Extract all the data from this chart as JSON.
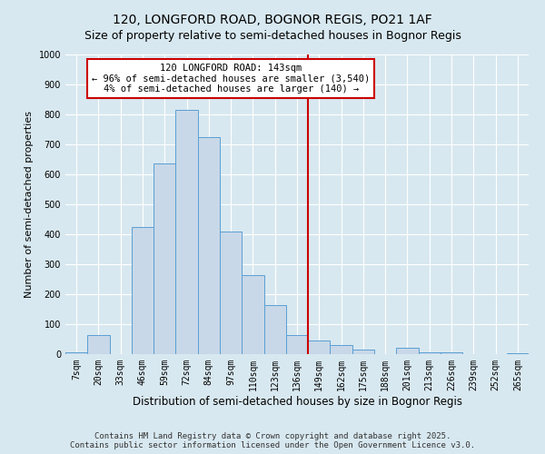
{
  "title": "120, LONGFORD ROAD, BOGNOR REGIS, PO21 1AF",
  "subtitle": "Size of property relative to semi-detached houses in Bognor Regis",
  "xlabel": "Distribution of semi-detached houses by size in Bognor Regis",
  "ylabel": "Number of semi-detached properties",
  "footer_line1": "Contains HM Land Registry data © Crown copyright and database right 2025.",
  "footer_line2": "Contains public sector information licensed under the Open Government Licence v3.0.",
  "categories": [
    "7sqm",
    "20sqm",
    "33sqm",
    "46sqm",
    "59sqm",
    "72sqm",
    "84sqm",
    "97sqm",
    "110sqm",
    "123sqm",
    "136sqm",
    "149sqm",
    "162sqm",
    "175sqm",
    "188sqm",
    "201sqm",
    "213sqm",
    "226sqm",
    "239sqm",
    "252sqm",
    "265sqm"
  ],
  "values": [
    5,
    65,
    0,
    425,
    635,
    815,
    725,
    410,
    265,
    165,
    65,
    45,
    30,
    15,
    0,
    20,
    5,
    5,
    0,
    0,
    2
  ],
  "bar_color": "#c8d8e8",
  "bar_edge_color": "#5a9fd4",
  "vline_x_index": 10.5,
  "vline_color": "#cc0000",
  "annotation_text": "120 LONGFORD ROAD: 143sqm\n← 96% of semi-detached houses are smaller (3,540)\n4% of semi-detached houses are larger (140) →",
  "annotation_box_color": "#cc0000",
  "annotation_box_facecolor": "white",
  "ylim": [
    0,
    1000
  ],
  "yticks": [
    0,
    100,
    200,
    300,
    400,
    500,
    600,
    700,
    800,
    900,
    1000
  ],
  "bg_color": "#d8e8f0",
  "plot_bg_color": "#d8e8f0",
  "grid_color": "white",
  "title_fontsize": 10,
  "subtitle_fontsize": 9,
  "xlabel_fontsize": 8.5,
  "ylabel_fontsize": 8,
  "tick_fontsize": 7,
  "footer_fontsize": 6.5,
  "ann_fontsize": 7.5
}
